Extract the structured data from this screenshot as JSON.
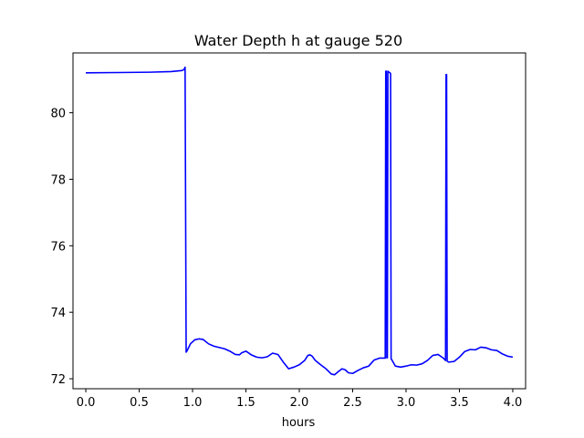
{
  "chart_data": {
    "type": "line",
    "title": "Water Depth h at gauge 520",
    "xlabel": "hours",
    "ylabel": "",
    "xlim": [
      -0.12,
      4.12
    ],
    "ylim": [
      71.7,
      81.8
    ],
    "grid": false,
    "x_ticks": [
      0.0,
      0.5,
      1.0,
      1.5,
      2.0,
      2.5,
      3.0,
      3.5,
      4.0
    ],
    "x_tick_labels": [
      "0.0",
      "0.5",
      "1.0",
      "1.5",
      "2.0",
      "2.5",
      "3.0",
      "3.5",
      "4.0"
    ],
    "y_ticks": [
      72,
      74,
      76,
      78,
      80
    ],
    "y_tick_labels": [
      "72",
      "74",
      "76",
      "78",
      "80"
    ],
    "series": [
      {
        "color": "#0000ff",
        "x": [
          0.0,
          0.3,
          0.6,
          0.8,
          0.9,
          0.92,
          0.93,
          0.94,
          0.95,
          0.98,
          1.02,
          1.06,
          1.1,
          1.15,
          1.2,
          1.3,
          1.35,
          1.4,
          1.44,
          1.46,
          1.5,
          1.55,
          1.6,
          1.65,
          1.7,
          1.75,
          1.8,
          1.85,
          1.9,
          1.95,
          2.0,
          2.05,
          2.08,
          2.1,
          2.12,
          2.15,
          2.2,
          2.25,
          2.3,
          2.33,
          2.36,
          2.4,
          2.43,
          2.46,
          2.5,
          2.55,
          2.6,
          2.65,
          2.7,
          2.75,
          2.8,
          2.805,
          2.81,
          2.815,
          2.82,
          2.825,
          2.83,
          2.84,
          2.85,
          2.855,
          2.86,
          2.865,
          2.87,
          2.9,
          2.95,
          3.0,
          3.05,
          3.1,
          3.15,
          3.2,
          3.25,
          3.3,
          3.35,
          3.37,
          3.375,
          3.38,
          3.385,
          3.39,
          3.4,
          3.45,
          3.5,
          3.55,
          3.6,
          3.65,
          3.7,
          3.75,
          3.8,
          3.85,
          3.9,
          3.95,
          4.0
        ],
        "y": [
          81.2,
          81.21,
          81.22,
          81.24,
          81.27,
          81.3,
          81.37,
          72.8,
          72.85,
          73.05,
          73.17,
          73.2,
          73.18,
          73.05,
          72.98,
          72.9,
          72.83,
          72.73,
          72.72,
          72.78,
          72.83,
          72.72,
          72.65,
          72.63,
          72.66,
          72.77,
          72.73,
          72.5,
          72.3,
          72.35,
          72.42,
          72.55,
          72.7,
          72.72,
          72.68,
          72.55,
          72.42,
          72.3,
          72.14,
          72.12,
          72.2,
          72.3,
          72.27,
          72.18,
          72.16,
          72.25,
          72.33,
          72.38,
          72.56,
          72.62,
          72.62,
          72.62,
          81.25,
          81.25,
          72.63,
          72.63,
          81.25,
          81.22,
          81.2,
          81.18,
          72.6,
          72.58,
          72.55,
          72.38,
          72.35,
          72.38,
          72.42,
          72.41,
          72.45,
          72.55,
          72.7,
          72.73,
          72.62,
          72.55,
          81.15,
          81.15,
          72.53,
          72.52,
          72.5,
          72.52,
          72.65,
          72.82,
          72.88,
          72.87,
          72.95,
          72.93,
          72.87,
          72.85,
          72.75,
          72.68,
          72.65
        ]
      }
    ]
  }
}
